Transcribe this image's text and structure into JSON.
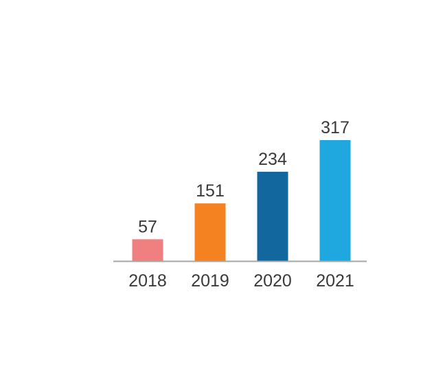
{
  "chart_data": {
    "type": "bar",
    "categories": [
      "2018",
      "2019",
      "2020",
      "2021"
    ],
    "values": [
      57,
      151,
      234,
      317
    ],
    "colors": [
      "#f08080",
      "#f58220",
      "#12679f",
      "#1fa8e0"
    ],
    "title": "",
    "xlabel": "",
    "ylabel": "",
    "ylim": [
      0,
      317
    ],
    "data_labels": true,
    "grid": false,
    "legend": "none",
    "axis_color": "#a6a6a6"
  }
}
